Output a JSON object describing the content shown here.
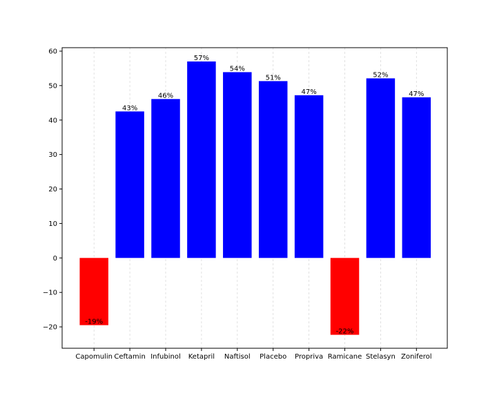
{
  "chart_data": {
    "type": "bar",
    "categories": [
      "Capomulin",
      "Ceftamin",
      "Infubinol",
      "Ketapril",
      "Naftisol",
      "Placebo",
      "Propriva",
      "Ramicane",
      "Stelasyn",
      "Zoniferol"
    ],
    "values": [
      -19.5,
      42.5,
      46.1,
      57.0,
      53.9,
      51.3,
      47.2,
      -22.3,
      52.1,
      46.6
    ],
    "data_labels": [
      "-19%",
      "43%",
      "46%",
      "57%",
      "54%",
      "51%",
      "47%",
      "-22%",
      "52%",
      "47%"
    ],
    "title": "",
    "xlabel": "",
    "ylabel": "",
    "ylim": [
      -26.2,
      61.0
    ],
    "yticks": [
      -20,
      -10,
      0,
      10,
      20,
      30,
      40,
      50,
      60
    ],
    "ytick_labels": [
      "−20",
      "−10",
      "0",
      "10",
      "20",
      "30",
      "40",
      "50",
      "60"
    ],
    "grid": "vertical dashed",
    "legend": "none",
    "colors": {
      "positive": "#0000ff",
      "negative": "#ff0000"
    }
  }
}
